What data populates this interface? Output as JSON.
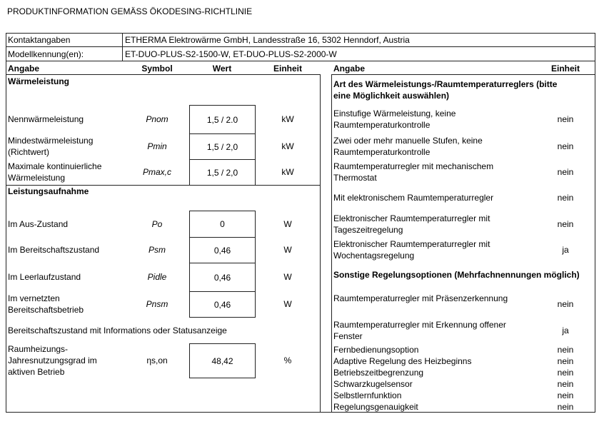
{
  "title": "PRODUKTINFORMATION GEMÄSS ÖKODESING-RICHTLINIE",
  "contact": {
    "label": "Kontaktangaben",
    "value": "ETHERMA Elektrowärme GmbH, Landesstraße 16, 5302 Henndorf, Austria"
  },
  "models": {
    "label": "Modellkennung(en):",
    "value": "ET-DUO-PLUS-S2-1500-W, ET-DUO-PLUS-S2-2000-W"
  },
  "left": {
    "headers": {
      "angabe": "Angabe",
      "symbol": "Symbol",
      "wert": "Wert",
      "einheit": "Einheit"
    },
    "section1": "Wärmeleistung",
    "rows1": [
      {
        "label": "Nennwärmeleistung",
        "symbol": "Pnom",
        "value": "1,5 / 2.0",
        "unit": "kW"
      },
      {
        "label": "Mindestwärmeleistung (Richtwert)",
        "symbol": "Pmin",
        "value": "1,5 / 2,0",
        "unit": "kW"
      },
      {
        "label": "Maximale kontinuierliche Wärmeleistung",
        "symbol": "Pmax,c",
        "value": "1,5 / 2,0",
        "unit": "kW"
      }
    ],
    "section2": "Leistungsaufnahme",
    "rows2": [
      {
        "label": "Im Aus-Zustand",
        "symbol": "Po",
        "value": "0",
        "unit": "W"
      },
      {
        "label": "Im Bereitschaftszustand",
        "symbol": "Psm",
        "value": "0,46",
        "unit": "W"
      },
      {
        "label": "Im Leerlaufzustand",
        "symbol": "Pidle",
        "value": "0,46",
        "unit": "W"
      },
      {
        "label": "Im vernetzten Bereitschaftsbetrieb",
        "symbol": "Pnsm",
        "value": "0,46",
        "unit": "W"
      }
    ],
    "status_note": "Bereitschaftszustand mit Informations oder Statusanzeige",
    "efficiency": {
      "label": "Raumheizungs- Jahresnutzungsgrad im aktiven Betrieb",
      "symbol": "ηs,on",
      "value": "48,42",
      "unit": "%"
    }
  },
  "right": {
    "headers": {
      "angabe": "Angabe",
      "einheit": "Einheit"
    },
    "section1": "Art des Wärmeleistungs-/Raumtemperaturreglers (bitte eine Möglichkeit auswählen)",
    "rows1": [
      {
        "label": "Einstufige Wärmeleistung, keine Raumtemperaturkontrolle",
        "value": "nein"
      },
      {
        "label": "Zwei oder mehr manuelle Stufen, keine Raumtemperaturkontrolle",
        "value": "nein"
      },
      {
        "label": "Raumtemperaturregler mit mechanischem Thermostat",
        "value": "nein"
      },
      {
        "label": "Mit elektronischem Raumtemperaturregler",
        "value": "nein"
      },
      {
        "label": "Elektronischer Raumtemperaturregler mit Tageszeitregelung",
        "value": "nein"
      },
      {
        "label": "Elektronischer Raumtemperaturregler mit Wochentagsregelung",
        "value": "ja"
      }
    ],
    "section2": "Sonstige Regelungsoptionen (Mehrfachnennungen möglich)",
    "rows2": [
      {
        "label": "Raumtemperaturregler mit Präsenzerkennung",
        "value": "nein"
      },
      {
        "label": "Raumtemperaturregler mit Erkennung offener Fenster",
        "value": "ja"
      },
      {
        "label": "Fernbedienungsoption",
        "value": "nein"
      },
      {
        "label": "Adaptive Regelung des Heizbeginns",
        "value": "nein"
      },
      {
        "label": "Betriebszeitbegrenzung",
        "value": "nein"
      },
      {
        "label": "Schwarzkugelsensor",
        "value": "nein"
      },
      {
        "label": "Selbstlernfunktion",
        "value": "nein"
      },
      {
        "label": "Regelungsgenauigkeit",
        "value": "nein"
      }
    ]
  }
}
